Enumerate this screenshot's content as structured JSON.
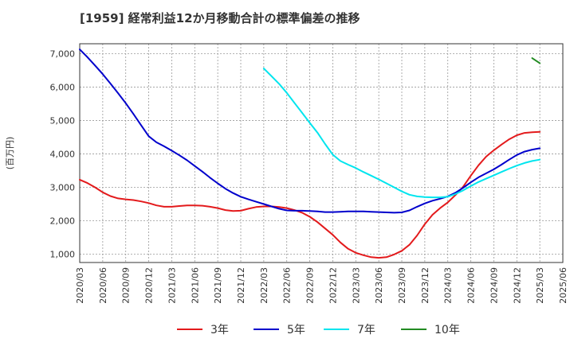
{
  "chart_data": {
    "type": "line",
    "title": "[1959]  経常利益12か月移動合計の標準偏差の推移",
    "ylabel": "(百万円)",
    "ylim": [
      750,
      7300
    ],
    "yticks": [
      1000,
      2000,
      3000,
      4000,
      5000,
      6000,
      7000
    ],
    "ytick_labels": [
      "1,000",
      "2,000",
      "3,000",
      "4,000",
      "5,000",
      "6,000",
      "7,000"
    ],
    "x_start": "2020/03",
    "x_end": "2025/06",
    "x_tick_labels": [
      "2020/03",
      "2020/06",
      "2020/09",
      "2020/12",
      "2021/03",
      "2021/06",
      "2021/09",
      "2021/12",
      "2022/03",
      "2022/06",
      "2022/09",
      "2022/12",
      "2023/03",
      "2023/06",
      "2023/09",
      "2023/12",
      "2024/03",
      "2024/06",
      "2024/09",
      "2024/12",
      "2025/03",
      "2025/06"
    ],
    "grid": true,
    "legend_position": "bottom",
    "series": [
      {
        "name": "3年",
        "color": "#e31a1c",
        "x": [
          "2020/03",
          "2020/04",
          "2020/05",
          "2020/06",
          "2020/07",
          "2020/08",
          "2020/09",
          "2020/10",
          "2020/11",
          "2020/12",
          "2021/01",
          "2021/02",
          "2021/03",
          "2021/04",
          "2021/05",
          "2021/06",
          "2021/07",
          "2021/08",
          "2021/09",
          "2021/10",
          "2021/11",
          "2021/12",
          "2022/01",
          "2022/02",
          "2022/03",
          "2022/04",
          "2022/05",
          "2022/06",
          "2022/07",
          "2022/08",
          "2022/09",
          "2022/10",
          "2022/11",
          "2022/12",
          "2023/01",
          "2023/02",
          "2023/03",
          "2023/04",
          "2023/05",
          "2023/06",
          "2023/07",
          "2023/08",
          "2023/09",
          "2023/10",
          "2023/11",
          "2023/12",
          "2024/01",
          "2024/02",
          "2024/03",
          "2024/04",
          "2024/05",
          "2024/06",
          "2024/07",
          "2024/08",
          "2024/09",
          "2024/10",
          "2024/11",
          "2024/12",
          "2025/01",
          "2025/02",
          "2025/03"
        ],
        "values": [
          3230,
          3130,
          3000,
          2850,
          2740,
          2670,
          2640,
          2620,
          2580,
          2530,
          2460,
          2420,
          2420,
          2440,
          2460,
          2460,
          2450,
          2420,
          2380,
          2320,
          2290,
          2300,
          2360,
          2410,
          2430,
          2430,
          2410,
          2380,
          2320,
          2240,
          2120,
          1960,
          1770,
          1580,
          1350,
          1160,
          1040,
          970,
          910,
          890,
          910,
          990,
          1100,
          1280,
          1560,
          1900,
          2180,
          2380,
          2550,
          2770,
          3020,
          3350,
          3660,
          3920,
          4110,
          4280,
          4440,
          4560,
          4630,
          4650,
          4660
        ]
      },
      {
        "name": "5年",
        "color": "#0000cc",
        "x": [
          "2020/03",
          "2020/04",
          "2020/05",
          "2020/06",
          "2020/07",
          "2020/08",
          "2020/09",
          "2020/10",
          "2020/11",
          "2020/12",
          "2021/01",
          "2021/02",
          "2021/03",
          "2021/04",
          "2021/05",
          "2021/06",
          "2021/07",
          "2021/08",
          "2021/09",
          "2021/10",
          "2021/11",
          "2021/12",
          "2022/01",
          "2022/02",
          "2022/03",
          "2022/04",
          "2022/05",
          "2022/06",
          "2022/07",
          "2022/08",
          "2022/09",
          "2022/10",
          "2022/11",
          "2022/12",
          "2023/01",
          "2023/02",
          "2023/03",
          "2023/04",
          "2023/05",
          "2023/06",
          "2023/07",
          "2023/08",
          "2023/09",
          "2023/10",
          "2023/11",
          "2023/12",
          "2024/01",
          "2024/02",
          "2024/03",
          "2024/04",
          "2024/05",
          "2024/06",
          "2024/07",
          "2024/08",
          "2024/09",
          "2024/10",
          "2024/11",
          "2024/12",
          "2025/01",
          "2025/02",
          "2025/03"
        ],
        "values": [
          7130,
          6900,
          6650,
          6390,
          6110,
          5820,
          5520,
          5200,
          4860,
          4530,
          4350,
          4230,
          4100,
          3960,
          3810,
          3640,
          3470,
          3290,
          3120,
          2960,
          2830,
          2720,
          2640,
          2570,
          2500,
          2430,
          2360,
          2310,
          2300,
          2300,
          2290,
          2280,
          2260,
          2260,
          2270,
          2280,
          2280,
          2280,
          2270,
          2260,
          2250,
          2240,
          2250,
          2310,
          2420,
          2520,
          2600,
          2660,
          2730,
          2840,
          2990,
          3150,
          3300,
          3420,
          3540,
          3680,
          3830,
          3970,
          4070,
          4130,
          4170
        ]
      },
      {
        "name": "7年",
        "color": "#00e5ee",
        "x": [
          "2022/03",
          "2022/04",
          "2022/05",
          "2022/06",
          "2022/07",
          "2022/08",
          "2022/09",
          "2022/10",
          "2022/11",
          "2022/12",
          "2023/01",
          "2023/02",
          "2023/03",
          "2023/04",
          "2023/05",
          "2023/06",
          "2023/07",
          "2023/08",
          "2023/09",
          "2023/10",
          "2023/11",
          "2023/12",
          "2024/01",
          "2024/02",
          "2024/03",
          "2024/04",
          "2024/05",
          "2024/06",
          "2024/07",
          "2024/08",
          "2024/09",
          "2024/10",
          "2024/11",
          "2024/12",
          "2025/01",
          "2025/02",
          "2025/03"
        ],
        "values": [
          6560,
          6330,
          6100,
          5830,
          5530,
          5230,
          4930,
          4640,
          4300,
          3980,
          3790,
          3680,
          3580,
          3460,
          3350,
          3240,
          3120,
          3000,
          2880,
          2780,
          2730,
          2710,
          2700,
          2700,
          2720,
          2800,
          2910,
          3040,
          3160,
          3260,
          3360,
          3460,
          3560,
          3650,
          3730,
          3790,
          3830
        ]
      },
      {
        "name": "10年",
        "color": "#228b22",
        "x": [
          "2025/02",
          "2025/03"
        ],
        "values": [
          6870,
          6720
        ]
      }
    ]
  }
}
